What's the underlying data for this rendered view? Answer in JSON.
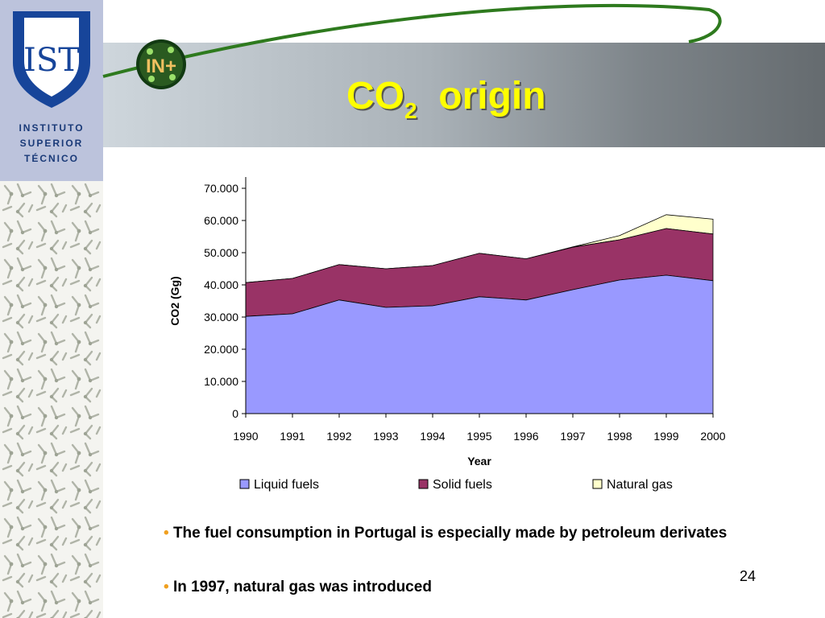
{
  "header": {
    "title_main": "CO",
    "title_sub": "2",
    "title_rest": "origin",
    "logo_badge": "IN+"
  },
  "institution": {
    "logo_letters": "IST",
    "lines": [
      "INSTITUTO",
      "SUPERIOR",
      "TÉCNICO"
    ]
  },
  "chart_data": {
    "type": "area",
    "stacked": true,
    "x": [
      "1990",
      "1991",
      "1992",
      "1993",
      "1994",
      "1995",
      "1996",
      "1997",
      "1998",
      "1999",
      "2000"
    ],
    "series": [
      {
        "name": "Liquid fuels",
        "color": "#9999ff",
        "values": [
          30200,
          31000,
          35300,
          33000,
          33500,
          36300,
          35300,
          38500,
          41500,
          43000,
          41300
        ]
      },
      {
        "name": "Solid fuels",
        "color": "#993366",
        "values": [
          10500,
          11000,
          11000,
          12000,
          12500,
          13500,
          12800,
          13200,
          12500,
          14500,
          14500
        ]
      },
      {
        "name": "Natural gas",
        "color": "#ffffcc",
        "values": [
          0,
          0,
          0,
          0,
          0,
          0,
          0,
          100,
          1300,
          4300,
          4600
        ]
      }
    ],
    "ylabel": "CO2 (Gg)",
    "xlabel": "Year",
    "ylim": [
      0,
      70000
    ],
    "yticks": [
      "0",
      "10.000",
      "20.000",
      "30.000",
      "40.000",
      "50.000",
      "60.000",
      "70.000"
    ],
    "grid": false,
    "legend": "bottom"
  },
  "bullets": [
    "The fuel consumption in Portugal is especially made by petroleum derivates",
    "In 1997, natural gas was introduced"
  ],
  "bullet_marker": "•",
  "page_number": "24",
  "colors": {
    "title": "#ffff00",
    "bullet": "#f0a020",
    "swoosh": "#2e7a1e"
  }
}
